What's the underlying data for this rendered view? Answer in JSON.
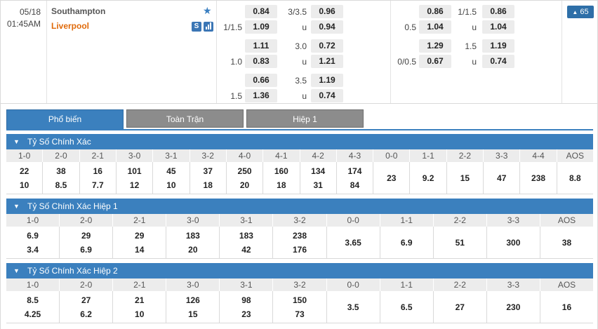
{
  "match": {
    "date": "05/18",
    "time": "01:45AM",
    "home": "Southampton",
    "away": "Liverpool",
    "icon_s": "S",
    "more_count": "65"
  },
  "odds_full": [
    {
      "hcap": "",
      "h": "0.84",
      "ou": "3/3.5",
      "o": "0.96"
    },
    {
      "hcap": "1/1.5",
      "h": "1.09",
      "ou": "u",
      "o": "0.94"
    },
    {
      "hcap": "",
      "h": "1.11",
      "ou": "3.0",
      "o": "0.72"
    },
    {
      "hcap": "1.0",
      "h": "0.83",
      "ou": "u",
      "o": "1.21"
    },
    {
      "hcap": "",
      "h": "0.66",
      "ou": "3.5",
      "o": "1.19"
    },
    {
      "hcap": "1.5",
      "h": "1.36",
      "ou": "u",
      "o": "0.74"
    }
  ],
  "odds_half": [
    {
      "hcap": "",
      "h": "0.86",
      "ou": "1/1.5",
      "o": "0.86"
    },
    {
      "hcap": "0.5",
      "h": "1.04",
      "ou": "u",
      "o": "1.04"
    },
    {
      "hcap": "",
      "h": "1.29",
      "ou": "1.5",
      "o": "1.19"
    },
    {
      "hcap": "0/0.5",
      "h": "0.67",
      "ou": "u",
      "o": "0.74"
    }
  ],
  "tabs": [
    "Phổ biến",
    "Toàn Trận",
    "Hiệp 1"
  ],
  "sections": [
    {
      "title": "Tỷ Số Chính Xác",
      "headers": [
        "1-0",
        "2-0",
        "2-1",
        "3-0",
        "3-1",
        "3-2",
        "4-0",
        "4-1",
        "4-2",
        "4-3",
        "0-0",
        "1-1",
        "2-2",
        "3-3",
        "4-4",
        "AOS"
      ],
      "top": [
        "22",
        "38",
        "16",
        "101",
        "45",
        "37",
        "250",
        "160",
        "134",
        "174",
        "23",
        "9.2",
        "15",
        "47",
        "238",
        "8.8"
      ],
      "bottom": [
        "10",
        "8.5",
        "7.7",
        "12",
        "10",
        "18",
        "20",
        "18",
        "31",
        "84",
        "",
        "",
        "",
        "",
        "",
        ""
      ]
    },
    {
      "title": "Tỷ Số Chính Xác Hiệp 1",
      "headers": [
        "1-0",
        "2-0",
        "2-1",
        "3-0",
        "3-1",
        "3-2",
        "0-0",
        "1-1",
        "2-2",
        "3-3",
        "AOS"
      ],
      "top": [
        "6.9",
        "29",
        "29",
        "183",
        "183",
        "238",
        "3.65",
        "6.9",
        "51",
        "300",
        "38"
      ],
      "bottom": [
        "3.4",
        "6.9",
        "14",
        "20",
        "42",
        "176",
        "",
        "",
        "",
        "",
        ""
      ]
    },
    {
      "title": "Tỷ Số Chính Xác Hiệp 2",
      "headers": [
        "1-0",
        "2-0",
        "2-1",
        "3-0",
        "3-1",
        "3-2",
        "0-0",
        "1-1",
        "2-2",
        "3-3",
        "AOS"
      ],
      "top": [
        "8.5",
        "27",
        "21",
        "126",
        "98",
        "150",
        "3.5",
        "6.5",
        "27",
        "230",
        "16"
      ],
      "bottom": [
        "4.25",
        "6.2",
        "10",
        "15",
        "23",
        "73",
        "",
        "",
        "",
        "",
        ""
      ]
    }
  ],
  "colors": {
    "accent": "#3b80be",
    "away": "#e06a0a",
    "tab_inactive": "#8c8c8c"
  },
  "icons": {
    "favorite": "star-icon",
    "stats": "chart-icon",
    "collapse": "triangle-down-icon"
  }
}
